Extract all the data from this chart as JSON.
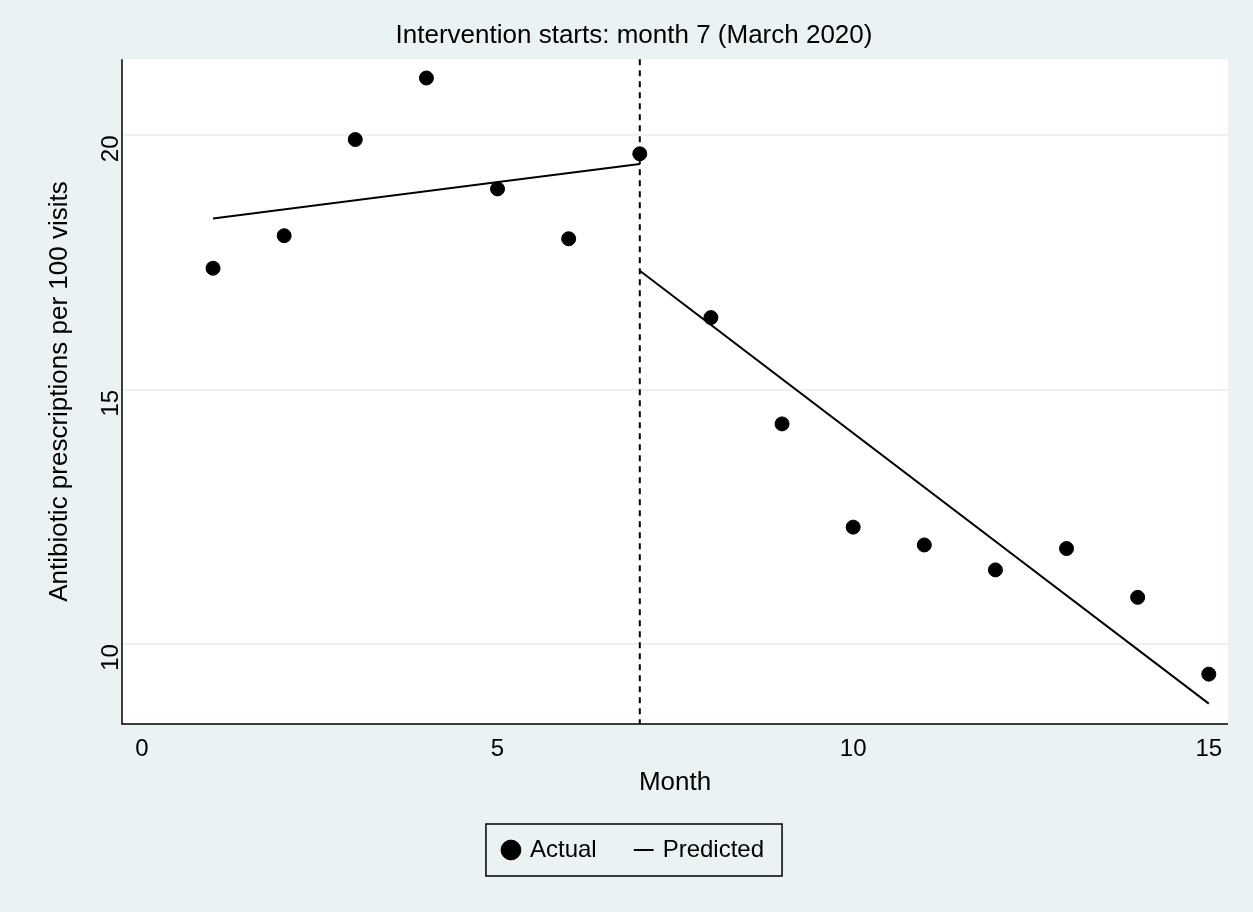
{
  "chart_data": {
    "type": "scatter",
    "title": "Intervention starts: month 7 (March 2020)",
    "xlabel": "Month",
    "ylabel": "Antibiotic prescriptions per 100 visits",
    "x": [
      1,
      2,
      3,
      4,
      5,
      6,
      7,
      8,
      9,
      10,
      11,
      12,
      13,
      14,
      15
    ],
    "series": [
      {
        "name": "Actual",
        "marker": "circle",
        "color": "#000000",
        "values": [
          17.39,
          18.03,
          19.92,
          21.13,
          18.95,
          17.97,
          19.64,
          16.42,
          14.33,
          12.3,
          11.95,
          11.46,
          11.88,
          10.92,
          9.41
        ]
      },
      {
        "name": "Predicted",
        "type": "line",
        "color": "#000000",
        "x": [
          1,
          7
        ],
        "values": [
          18.37,
          19.44
        ]
      },
      {
        "type": "line",
        "color": "#000000",
        "x": [
          7,
          15
        ],
        "values": [
          17.34,
          8.83
        ]
      }
    ],
    "xlim": [
      -0.28,
      15.27
    ],
    "xticks": [
      0,
      5,
      10,
      15
    ],
    "ylim": [
      8.43,
      21.5
    ],
    "yticks": [
      10,
      15,
      20
    ],
    "grid": "y",
    "legend": "bottom",
    "ref_lines": [
      {
        "axis": "x",
        "value": 7,
        "color": "#000000",
        "line_style": "dashed"
      }
    ]
  }
}
